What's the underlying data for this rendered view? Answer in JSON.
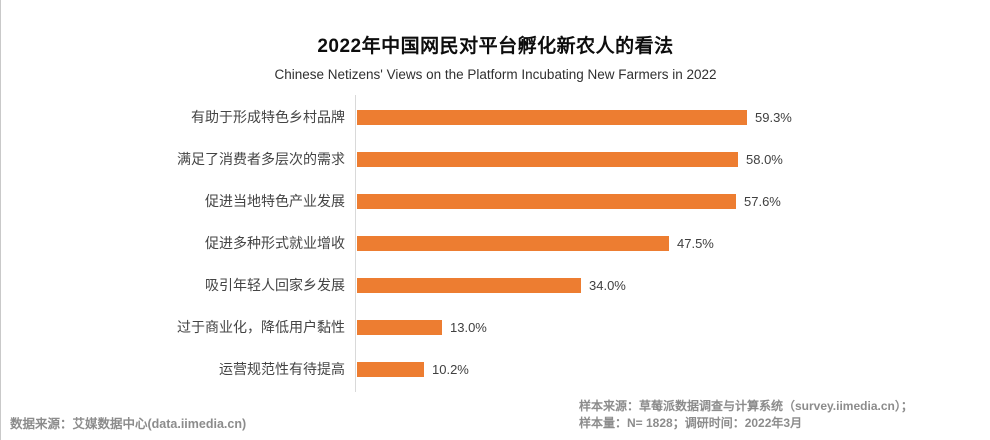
{
  "header": {
    "title": "2022年中国网民对平台孵化新农人的看法",
    "subtitle": "Chinese Netizens' Views on the Platform Incubating New Farmers in 2022"
  },
  "chart_data": {
    "type": "bar",
    "orientation": "horizontal",
    "title": "2022年中国网民对平台孵化新农人的看法",
    "subtitle": "Chinese Netizens' Views on the Platform Incubating New Farmers in 2022",
    "categories": [
      "有助于形成特色乡村品牌",
      "满足了消费者多层次的需求",
      "促进当地特色产业发展",
      "促进多种形式就业增收",
      "吸引年轻人回家乡发展",
      "过于商业化，降低用户黏性",
      "运营规范性有待提高"
    ],
    "values": [
      59.3,
      58.0,
      57.6,
      47.5,
      34.0,
      13.0,
      10.2
    ],
    "value_labels": [
      "59.3%",
      "58.0%",
      "57.6%",
      "47.5%",
      "34.0%",
      "13.0%",
      "10.2%"
    ],
    "unit": "%",
    "xlim": [
      0,
      65
    ],
    "grid": false,
    "legend": false,
    "bar_color": "#ED7D31",
    "axis_line_color": "#D9D9D9",
    "label_color": "#444444",
    "value_label_color": "#404040"
  },
  "footer": {
    "source_left": "数据来源：艾媒数据中心(data.iimedia.cn)",
    "sample_source": "样本来源：草莓派数据调查与计算系统（survey.iimedia.cn）；",
    "sample_info": "样本量：N= 1828；调研时间：2022年3月"
  }
}
